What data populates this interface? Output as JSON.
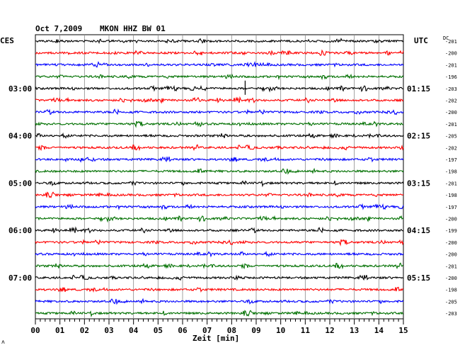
{
  "header": {
    "date": "Oct 7,2009",
    "station": "MKON HHZ BW 01",
    "left_tz": "CES",
    "right_tz": "UTC",
    "dc_label": "DC"
  },
  "colors": {
    "black": "#000000",
    "red": "#ff0000",
    "blue": "#0000ff",
    "green": "#007000"
  },
  "chart_data": {
    "type": "line",
    "xlabel": "Zeit [min]",
    "xlim": [
      0,
      15
    ],
    "x_ticks": [
      "00",
      "01",
      "02",
      "03",
      "04",
      "05",
      "06",
      "07",
      "08",
      "09",
      "10",
      "11",
      "12",
      "13",
      "14",
      "15"
    ],
    "left_time_labels": [
      {
        "trace_index": 4,
        "text": "03:00"
      },
      {
        "trace_index": 8,
        "text": "04:00"
      },
      {
        "trace_index": 12,
        "text": "05:00"
      },
      {
        "trace_index": 16,
        "text": "06:00"
      },
      {
        "trace_index": 20,
        "text": "07:00"
      }
    ],
    "right_time_labels": [
      {
        "trace_index": 4,
        "text": "01:15"
      },
      {
        "trace_index": 8,
        "text": "02:15"
      },
      {
        "trace_index": 12,
        "text": "03:15"
      },
      {
        "trace_index": 16,
        "text": "04:15"
      },
      {
        "trace_index": 20,
        "text": "05:15"
      }
    ],
    "traces": [
      {
        "color": "black",
        "dc": "-201"
      },
      {
        "color": "red",
        "dc": "-200"
      },
      {
        "color": "blue",
        "dc": "-201"
      },
      {
        "color": "green",
        "dc": "-196"
      },
      {
        "color": "black",
        "dc": "-203"
      },
      {
        "color": "red",
        "dc": "-202"
      },
      {
        "color": "blue",
        "dc": "-200"
      },
      {
        "color": "green",
        "dc": "-201"
      },
      {
        "color": "black",
        "dc": "-205"
      },
      {
        "color": "red",
        "dc": "-202"
      },
      {
        "color": "blue",
        "dc": "-197"
      },
      {
        "color": "green",
        "dc": "-198"
      },
      {
        "color": "black",
        "dc": "-201"
      },
      {
        "color": "red",
        "dc": "-198"
      },
      {
        "color": "blue",
        "dc": "-197"
      },
      {
        "color": "green",
        "dc": "-200"
      },
      {
        "color": "black",
        "dc": "-199"
      },
      {
        "color": "red",
        "dc": "-200"
      },
      {
        "color": "blue",
        "dc": "-200"
      },
      {
        "color": "green",
        "dc": "-201"
      },
      {
        "color": "black",
        "dc": "-200"
      },
      {
        "color": "red",
        "dc": "-198"
      },
      {
        "color": "blue",
        "dc": "-205"
      },
      {
        "color": "green",
        "dc": "-203"
      }
    ]
  },
  "footer": {
    "mark": "ʌ"
  }
}
